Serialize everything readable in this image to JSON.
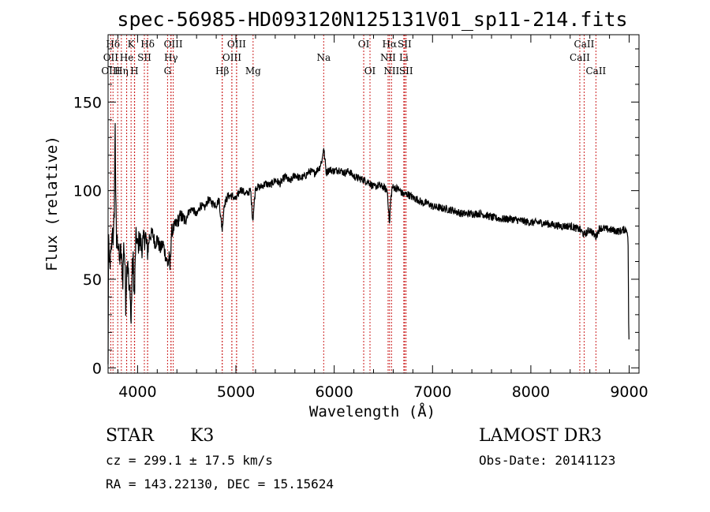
{
  "chart_data": {
    "type": "line",
    "title": "spec-56985-HD093120N125131V01_sp11-214.fits",
    "xlabel": "Wavelength (Å)",
    "ylabel": "Flux (relative)",
    "xlim": [
      3700,
      9100
    ],
    "ylim": [
      -3,
      188
    ],
    "xticks": [
      4000,
      5000,
      6000,
      7000,
      8000,
      9000
    ],
    "yticks": [
      0,
      50,
      100,
      150
    ],
    "grid": false,
    "series": [
      {
        "name": "spectrum",
        "anchors": [
          [
            3700,
            2
          ],
          [
            3705,
            82
          ],
          [
            3712,
            55
          ],
          [
            3720,
            60
          ],
          [
            3730,
            63
          ],
          [
            3745,
            78
          ],
          [
            3755,
            70
          ],
          [
            3765,
            95
          ],
          [
            3772,
            140
          ],
          [
            3778,
            100
          ],
          [
            3785,
            68
          ],
          [
            3800,
            73
          ],
          [
            3815,
            60
          ],
          [
            3830,
            66
          ],
          [
            3850,
            50
          ],
          [
            3860,
            70
          ],
          [
            3870,
            62
          ],
          [
            3880,
            36
          ],
          [
            3890,
            57
          ],
          [
            3900,
            63
          ],
          [
            3915,
            40
          ],
          [
            3925,
            46
          ],
          [
            3933,
            22
          ],
          [
            3945,
            55
          ],
          [
            3955,
            60
          ],
          [
            3968,
            38
          ],
          [
            3980,
            70
          ],
          [
            3990,
            75
          ],
          [
            4000,
            68
          ],
          [
            4020,
            73
          ],
          [
            4040,
            68
          ],
          [
            4060,
            71
          ],
          [
            4080,
            75
          ],
          [
            4102,
            64
          ],
          [
            4120,
            74
          ],
          [
            4150,
            76
          ],
          [
            4180,
            70
          ],
          [
            4200,
            73
          ],
          [
            4230,
            67
          ],
          [
            4260,
            70
          ],
          [
            4290,
            62
          ],
          [
            4310,
            58
          ],
          [
            4320,
            63
          ],
          [
            4330,
            56
          ],
          [
            4345,
            77
          ],
          [
            4370,
            79
          ],
          [
            4400,
            82
          ],
          [
            4440,
            86
          ],
          [
            4480,
            83
          ],
          [
            4520,
            88
          ],
          [
            4560,
            90
          ],
          [
            4600,
            86
          ],
          [
            4640,
            92
          ],
          [
            4680,
            90
          ],
          [
            4720,
            95
          ],
          [
            4760,
            93
          ],
          [
            4800,
            92
          ],
          [
            4830,
            95
          ],
          [
            4845,
            85
          ],
          [
            4861,
            78
          ],
          [
            4880,
            92
          ],
          [
            4920,
            97
          ],
          [
            4960,
            97
          ],
          [
            5000,
            95
          ],
          [
            5050,
            101
          ],
          [
            5100,
            98
          ],
          [
            5150,
            100
          ],
          [
            5172,
            83
          ],
          [
            5200,
            102
          ],
          [
            5250,
            102
          ],
          [
            5300,
            104
          ],
          [
            5350,
            103
          ],
          [
            5400,
            106
          ],
          [
            5450,
            104
          ],
          [
            5500,
            108
          ],
          [
            5550,
            105
          ],
          [
            5600,
            109
          ],
          [
            5650,
            107
          ],
          [
            5700,
            108
          ],
          [
            5750,
            111
          ],
          [
            5800,
            110
          ],
          [
            5850,
            113
          ],
          [
            5880,
            118
          ],
          [
            5892,
            125
          ],
          [
            5900,
            120
          ],
          [
            5920,
            110
          ],
          [
            5950,
            112
          ],
          [
            6000,
            111
          ],
          [
            6050,
            112
          ],
          [
            6100,
            110
          ],
          [
            6150,
            111
          ],
          [
            6200,
            108
          ],
          [
            6250,
            107
          ],
          [
            6300,
            106
          ],
          [
            6350,
            105
          ],
          [
            6400,
            102
          ],
          [
            6450,
            103
          ],
          [
            6500,
            102
          ],
          [
            6540,
            100
          ],
          [
            6555,
            88
          ],
          [
            6563,
            80
          ],
          [
            6572,
            93
          ],
          [
            6590,
            102
          ],
          [
            6650,
            101
          ],
          [
            6700,
            98
          ],
          [
            6750,
            98
          ],
          [
            6800,
            96
          ],
          [
            6850,
            95
          ],
          [
            6900,
            93
          ],
          [
            6950,
            93
          ],
          [
            7000,
            91
          ],
          [
            7100,
            90
          ],
          [
            7200,
            89
          ],
          [
            7300,
            87
          ],
          [
            7400,
            87
          ],
          [
            7500,
            87
          ],
          [
            7600,
            85
          ],
          [
            7700,
            84
          ],
          [
            7800,
            84
          ],
          [
            7900,
            83
          ],
          [
            8000,
            82
          ],
          [
            8100,
            82
          ],
          [
            8200,
            81
          ],
          [
            8300,
            80
          ],
          [
            8400,
            80
          ],
          [
            8500,
            78
          ],
          [
            8542,
            75
          ],
          [
            8600,
            78
          ],
          [
            8662,
            74
          ],
          [
            8700,
            79
          ],
          [
            8800,
            78
          ],
          [
            8900,
            77
          ],
          [
            8950,
            78
          ],
          [
            8980,
            78
          ],
          [
            8990,
            68
          ],
          [
            8995,
            25
          ],
          [
            9000,
            10
          ]
        ]
      }
    ],
    "spectral_lines": [
      {
        "label": "Hδ",
        "x": 3750,
        "row": 1
      },
      {
        "label": "K",
        "x": 3934,
        "row": 1
      },
      {
        "label": "Hδ",
        "x": 4102,
        "row": 1
      },
      {
        "label": "OIII",
        "x": 4363,
        "row": 1
      },
      {
        "label": "OIII",
        "x": 5007,
        "row": 1
      },
      {
        "label": "OI",
        "x": 6300,
        "row": 1
      },
      {
        "label": "Hα",
        "x": 6563,
        "row": 1
      },
      {
        "label": "SII",
        "x": 6716,
        "row": 1
      },
      {
        "label": "CaII",
        "x": 8542,
        "row": 1
      },
      {
        "label": "OII",
        "x": 3727,
        "row": 2
      },
      {
        "label": "He",
        "x": 3889,
        "row": 2
      },
      {
        "label": "SII",
        "x": 4069,
        "row": 2
      },
      {
        "label": "Hγ",
        "x": 4340,
        "row": 2
      },
      {
        "label": "OIII",
        "x": 4959,
        "row": 2
      },
      {
        "label": "Na",
        "x": 5893,
        "row": 2
      },
      {
        "label": "NII",
        "x": 6548,
        "row": 2
      },
      {
        "label": "Li",
        "x": 6708,
        "row": 2
      },
      {
        "label": "CaII",
        "x": 8498,
        "row": 2
      },
      {
        "label": "OIII",
        "x": 3727,
        "row": 3
      },
      {
        "label": "Hη",
        "x": 3835,
        "row": 3
      },
      {
        "label": "H",
        "x": 3968,
        "row": 3
      },
      {
        "label": "G",
        "x": 4305,
        "row": 3
      },
      {
        "label": "Hβ",
        "x": 4861,
        "row": 3
      },
      {
        "label": "Mg",
        "x": 5175,
        "row": 3
      },
      {
        "label": "OI",
        "x": 6364,
        "row": 3
      },
      {
        "label": "NII",
        "x": 6583,
        "row": 3
      },
      {
        "label": "SII",
        "x": 6731,
        "row": 3
      },
      {
        "label": "CaII",
        "x": 8662,
        "row": 3
      }
    ],
    "extra_line_markers": [
      3798,
      3889,
      3970,
      4102,
      4340,
      4861,
      4959,
      5007,
      6300,
      6716
    ]
  },
  "info": {
    "object_type": "STAR",
    "subclass": "K3",
    "survey": "LAMOST DR3",
    "redshift": "cz = 299.1 ± 17.5 km/s",
    "obs_date": "Obs-Date: 20141123",
    "coords": "RA = 143.22130, DEC =  15.15624"
  },
  "colors": {
    "line_marker": "#cc2222",
    "spectrum": "#000000",
    "axes": "#000000"
  }
}
